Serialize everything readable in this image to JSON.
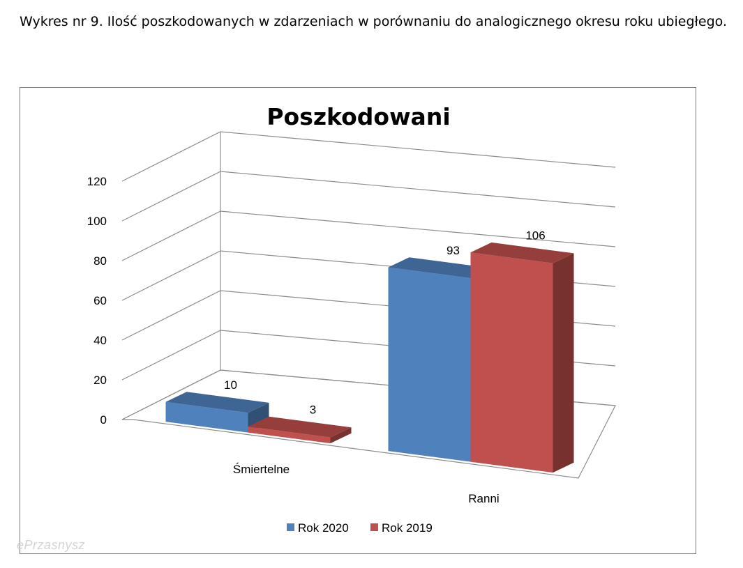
{
  "page": {
    "caption": "Wykres nr 9. Ilość poszkodowanych w zdarzeniach  w porównaniu do analogicznego okresu roku ubiegłego.",
    "watermark": "ePrzasnysz"
  },
  "chart_data": {
    "type": "bar",
    "view": "3d-clustered",
    "title": "Poszkodowani",
    "categories": [
      "Śmiertelne",
      "Ranni"
    ],
    "series": [
      {
        "name": "Rok 2020",
        "values": [
          10,
          93
        ],
        "color": "#4f81bd"
      },
      {
        "name": "Rok 2019",
        "values": [
          3,
          106
        ],
        "color": "#c0504d"
      }
    ],
    "y_ticks": [
      "0",
      "20",
      "40",
      "60",
      "80",
      "100",
      "120"
    ],
    "ylim": [
      0,
      120
    ],
    "grid": true,
    "legend": "bottom",
    "data_labels": true
  }
}
